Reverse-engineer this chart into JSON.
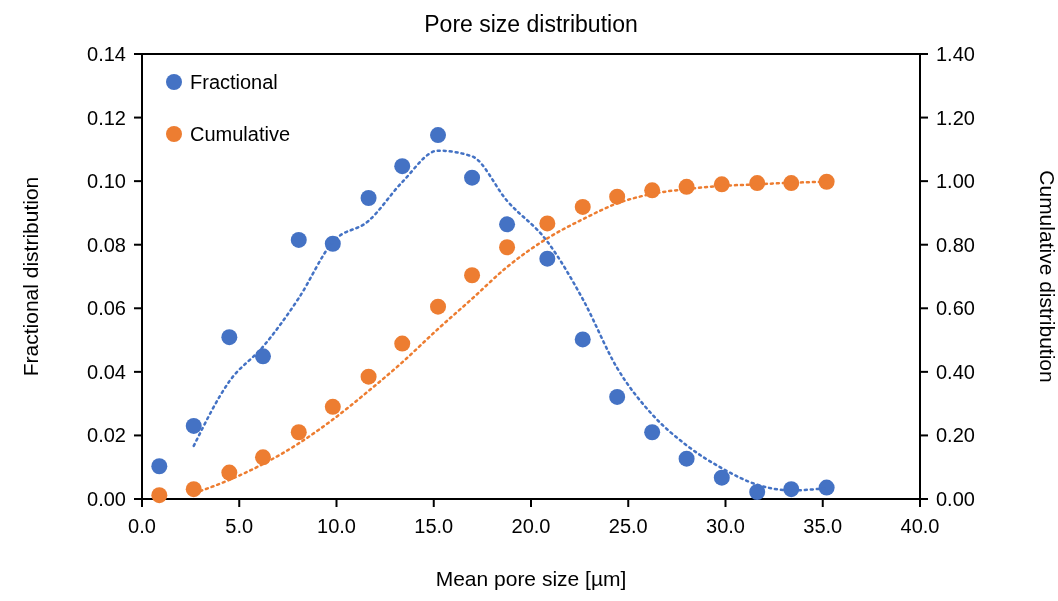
{
  "chart_data": {
    "type": "scatter",
    "title": "Pore size distribution",
    "xlabel": "Mean pore size [µm]",
    "ylabel": "Fractional distribution",
    "y2label": "Cumulative distribution",
    "x": [
      0.89,
      2.66,
      4.49,
      6.22,
      8.06,
      9.81,
      11.65,
      13.38,
      15.22,
      16.97,
      18.77,
      20.84,
      22.66,
      24.43,
      26.23,
      28.0,
      29.81,
      31.63,
      33.38,
      35.2
    ],
    "series": [
      {
        "name": "Fractional",
        "color": "#4472c4",
        "marker": "circle",
        "values": [
          0.0103,
          0.023,
          0.0509,
          0.0449,
          0.0815,
          0.0803,
          0.0947,
          0.1047,
          0.1145,
          0.1011,
          0.0864,
          0.0756,
          0.0502,
          0.0321,
          0.021,
          0.0127,
          0.0067,
          0.0022,
          0.0031,
          0.0036
        ]
      },
      {
        "name": "Cumulative",
        "color": "#ed7d31",
        "marker": "circle",
        "axis": "y2",
        "values": [
          0.012,
          0.031,
          0.083,
          0.131,
          0.21,
          0.29,
          0.385,
          0.489,
          0.605,
          0.704,
          0.792,
          0.867,
          0.919,
          0.951,
          0.971,
          0.982,
          0.99,
          0.994,
          0.994,
          0.998
        ]
      },
      {
        "type": "line",
        "color": "#4472c4",
        "line_style": "dotted",
        "marker": "none",
        "x": [
          2.66,
          4.49,
          6.22,
          8.06,
          9.81,
          11.65,
          13.38,
          15.22,
          16.97,
          18.77,
          20.84,
          22.66,
          24.43,
          26.23,
          28.0,
          29.81,
          31.63,
          33.38,
          35.2
        ],
        "values": [
          0.0167,
          0.037,
          0.0479,
          0.0632,
          0.0809,
          0.0875,
          0.0997,
          0.1096,
          0.1078,
          0.0938,
          0.081,
          0.0629,
          0.0412,
          0.0266,
          0.0169,
          0.0097,
          0.0045,
          0.0027,
          0.0034
        ]
      },
      {
        "type": "line",
        "color": "#ed7d31",
        "line_style": "dotted",
        "marker": "none",
        "axis": "y2",
        "x": [
          3.0,
          4.49,
          6.22,
          8.06,
          9.81,
          11.65,
          13.38,
          15.22,
          16.97,
          18.77,
          20.84,
          22.66,
          24.43,
          26.23,
          28.0,
          29.81,
          31.63,
          33.38,
          35.2
        ],
        "values": [
          0.025,
          0.06,
          0.11,
          0.175,
          0.25,
          0.34,
          0.43,
          0.535,
          0.63,
          0.73,
          0.82,
          0.88,
          0.93,
          0.96,
          0.975,
          0.985,
          0.99,
          0.995,
          0.998
        ]
      }
    ],
    "xlim": [
      0,
      40
    ],
    "xticks": [
      {
        "value": 0,
        "label": "0.0"
      },
      {
        "value": 5,
        "label": "5.0"
      },
      {
        "value": 10,
        "label": "10.0"
      },
      {
        "value": 15,
        "label": "15.0"
      },
      {
        "value": 20,
        "label": "20.0"
      },
      {
        "value": 25,
        "label": "25.0"
      },
      {
        "value": 30,
        "label": "30.0"
      },
      {
        "value": 35,
        "label": "35.0"
      },
      {
        "value": 40,
        "label": "40.0"
      }
    ],
    "ylim": [
      0,
      0.14
    ],
    "yticks": [
      {
        "value": 0,
        "label": "0.00"
      },
      {
        "value": 0.02,
        "label": "0.02"
      },
      {
        "value": 0.04,
        "label": "0.04"
      },
      {
        "value": 0.06,
        "label": "0.06"
      },
      {
        "value": 0.08,
        "label": "0.08"
      },
      {
        "value": 0.1,
        "label": "0.10"
      },
      {
        "value": 0.12,
        "label": "0.12"
      },
      {
        "value": 0.14,
        "label": "0.14"
      }
    ],
    "y2lim": [
      0,
      1.4
    ],
    "y2ticks": [
      {
        "value": 0,
        "label": "0.00"
      },
      {
        "value": 0.2,
        "label": "0.20"
      },
      {
        "value": 0.4,
        "label": "0.40"
      },
      {
        "value": 0.6,
        "label": "0.60"
      },
      {
        "value": 0.8,
        "label": "0.80"
      },
      {
        "value": 1,
        "label": "1.00"
      },
      {
        "value": 1.2,
        "label": "1.20"
      },
      {
        "value": 1.4,
        "label": "1.40"
      }
    ],
    "grid": false,
    "legend": "top left"
  }
}
